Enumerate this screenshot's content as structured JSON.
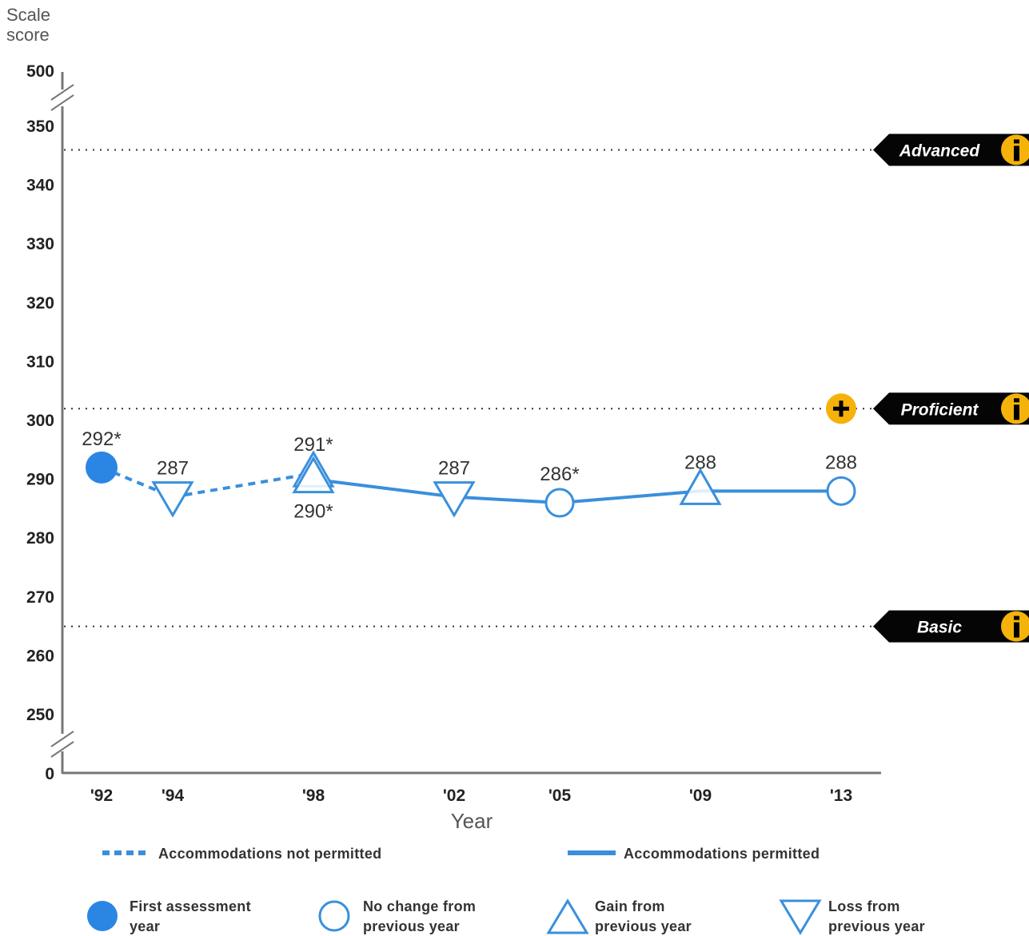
{
  "chart_data": {
    "type": "line",
    "ylabel_line1": "Scale",
    "ylabel_line2": "score",
    "xlabel": "Year",
    "y_ticks": [
      "500",
      "350",
      "340",
      "330",
      "320",
      "310",
      "300",
      "290",
      "280",
      "270",
      "260",
      "250",
      "0"
    ],
    "y_range_displayed": [
      245,
      355
    ],
    "axis_breaks": [
      "between 350 and 500",
      "between 250 and 0"
    ],
    "categories": [
      "'92",
      "'94",
      "'98",
      "'02",
      "'05",
      "'09",
      "'13"
    ],
    "points": [
      {
        "year": "'92",
        "value": 292,
        "label": "292*",
        "marker": "first-assessment",
        "accommodations": "not permitted"
      },
      {
        "year": "'94",
        "value": 287,
        "label": "287",
        "marker": "loss",
        "accommodations": "not permitted"
      },
      {
        "year": "'98",
        "value": 291,
        "label": "291*",
        "marker": "gain",
        "accommodations": "not permitted"
      },
      {
        "year": "'98",
        "value": 290,
        "label": "290*",
        "marker": "gain",
        "accommodations": "permitted"
      },
      {
        "year": "'02",
        "value": 287,
        "label": "287",
        "marker": "loss",
        "accommodations": "permitted"
      },
      {
        "year": "'05",
        "value": 286,
        "label": "286*",
        "marker": "no-change",
        "accommodations": "permitted"
      },
      {
        "year": "'09",
        "value": 288,
        "label": "288",
        "marker": "gain",
        "accommodations": "permitted"
      },
      {
        "year": "'13",
        "value": 288,
        "label": "288",
        "marker": "no-change",
        "accommodations": "permitted"
      }
    ],
    "reference_lines": [
      {
        "name": "Advanced",
        "value": 346
      },
      {
        "name": "Proficient",
        "value": 302
      },
      {
        "name": "Basic",
        "value": 265
      }
    ],
    "grid": false,
    "legend_position": "bottom"
  },
  "legend": {
    "not_permitted": "Accommodations not permitted",
    "permitted": "Accommodations permitted",
    "first_line1": "First assessment",
    "first_line2": "year",
    "nochange_line1": "No change from",
    "nochange_line2": "previous year",
    "gain_line1": "Gain from",
    "gain_line2": "previous year",
    "loss_line1": "Loss from",
    "loss_line2": "previous year"
  },
  "colors": {
    "series": "#3a8fdc",
    "first_marker": "#2b86e3",
    "axis": "#777777",
    "badge_bg": "#050505",
    "info_icon": "#f5b20a"
  },
  "icons": [
    "info-icon",
    "plus-icon"
  ]
}
